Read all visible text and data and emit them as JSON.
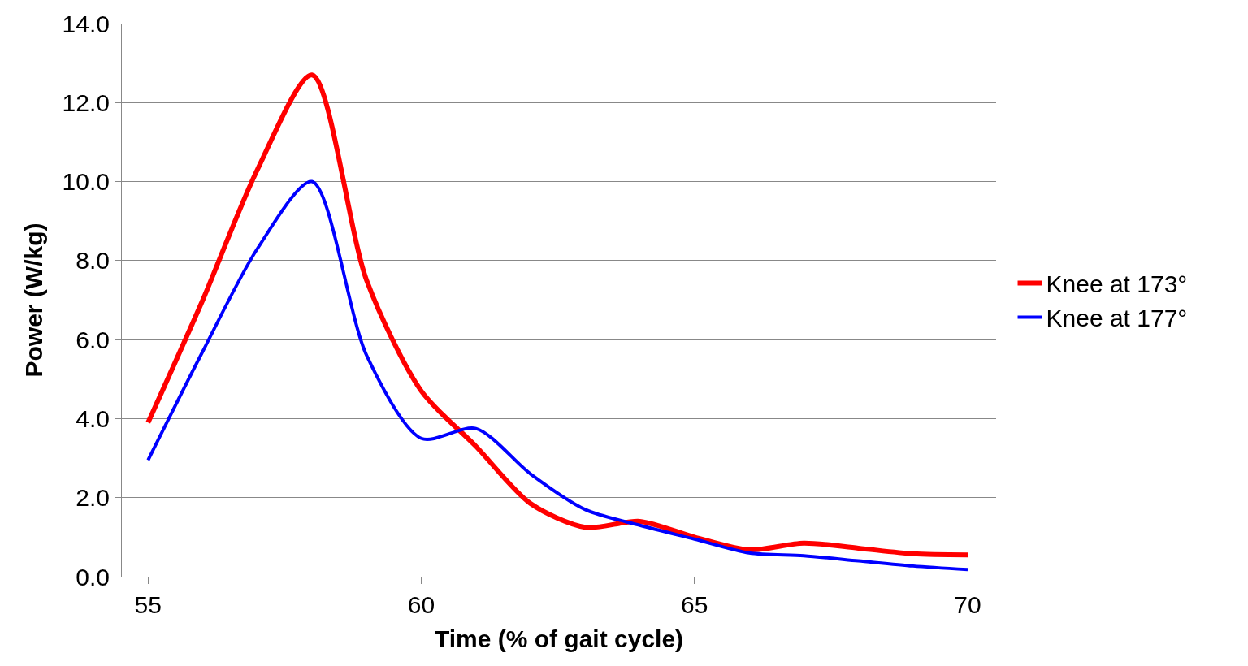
{
  "chart_data": {
    "type": "line",
    "xlabel": "Time (% of gait cycle)",
    "ylabel": "Power (W/kg)",
    "x": [
      55,
      56,
      57,
      58,
      59,
      60,
      61,
      62,
      63,
      64,
      65,
      66,
      67,
      68,
      69,
      70
    ],
    "series": [
      {
        "name": "Knee at 173°",
        "color": "#ff0000",
        "values": [
          3.9,
          7.0,
          10.3,
          12.7,
          7.5,
          4.7,
          3.3,
          1.85,
          1.25,
          1.4,
          1.0,
          0.68,
          0.85,
          0.72,
          0.58,
          0.55
        ]
      },
      {
        "name": "Knee at 177°",
        "color": "#0000ff",
        "values": [
          2.95,
          5.7,
          8.3,
          10.0,
          5.6,
          3.5,
          3.75,
          2.6,
          1.7,
          1.3,
          0.95,
          0.6,
          0.53,
          0.4,
          0.27,
          0.18
        ]
      }
    ],
    "xlim": [
      54.52,
      70.52
    ],
    "xticks": [
      55,
      60,
      65,
      70
    ],
    "ylim": [
      0,
      14
    ],
    "yticks": [
      {
        "value": 0,
        "label": "0.0"
      },
      {
        "value": 2,
        "label": "2.0"
      },
      {
        "value": 4,
        "label": "4.0"
      },
      {
        "value": 6,
        "label": "6.0"
      },
      {
        "value": 8,
        "label": "8.0"
      },
      {
        "value": 10,
        "label": "10.0"
      },
      {
        "value": 12,
        "label": "12.0"
      },
      {
        "value": 14,
        "label": "14.0"
      }
    ],
    "grid": "y",
    "legend": "right",
    "marker": "none",
    "line_style": "solid"
  }
}
